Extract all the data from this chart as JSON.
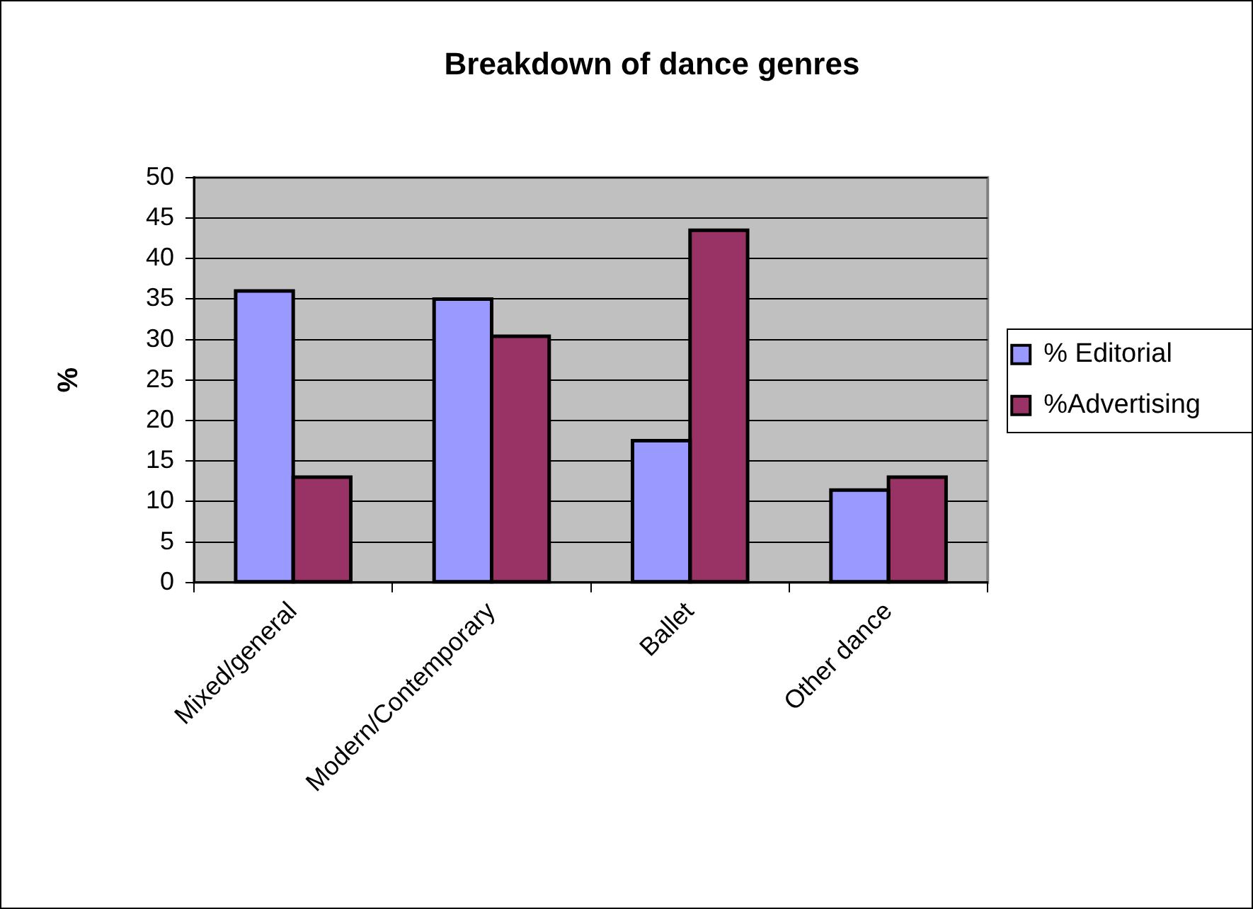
{
  "chart_data": {
    "type": "bar",
    "title": "Breakdown of dance genres",
    "ylabel": "%",
    "categories": [
      "Mixed/general",
      "Modern/Contemporary",
      "Ballet",
      "Other dance"
    ],
    "series": [
      {
        "name": "% Editorial",
        "color": "#9999ff",
        "values": [
          36,
          35,
          17.5,
          11.4
        ]
      },
      {
        "name": "%Advertising",
        "color": "#993366",
        "values": [
          13,
          30.4,
          43.5,
          13
        ]
      }
    ],
    "ylim": [
      0,
      50
    ],
    "yticks": [
      0,
      5,
      10,
      15,
      20,
      25,
      30,
      35,
      40,
      45,
      50
    ],
    "grid": "y",
    "legend": "right"
  }
}
